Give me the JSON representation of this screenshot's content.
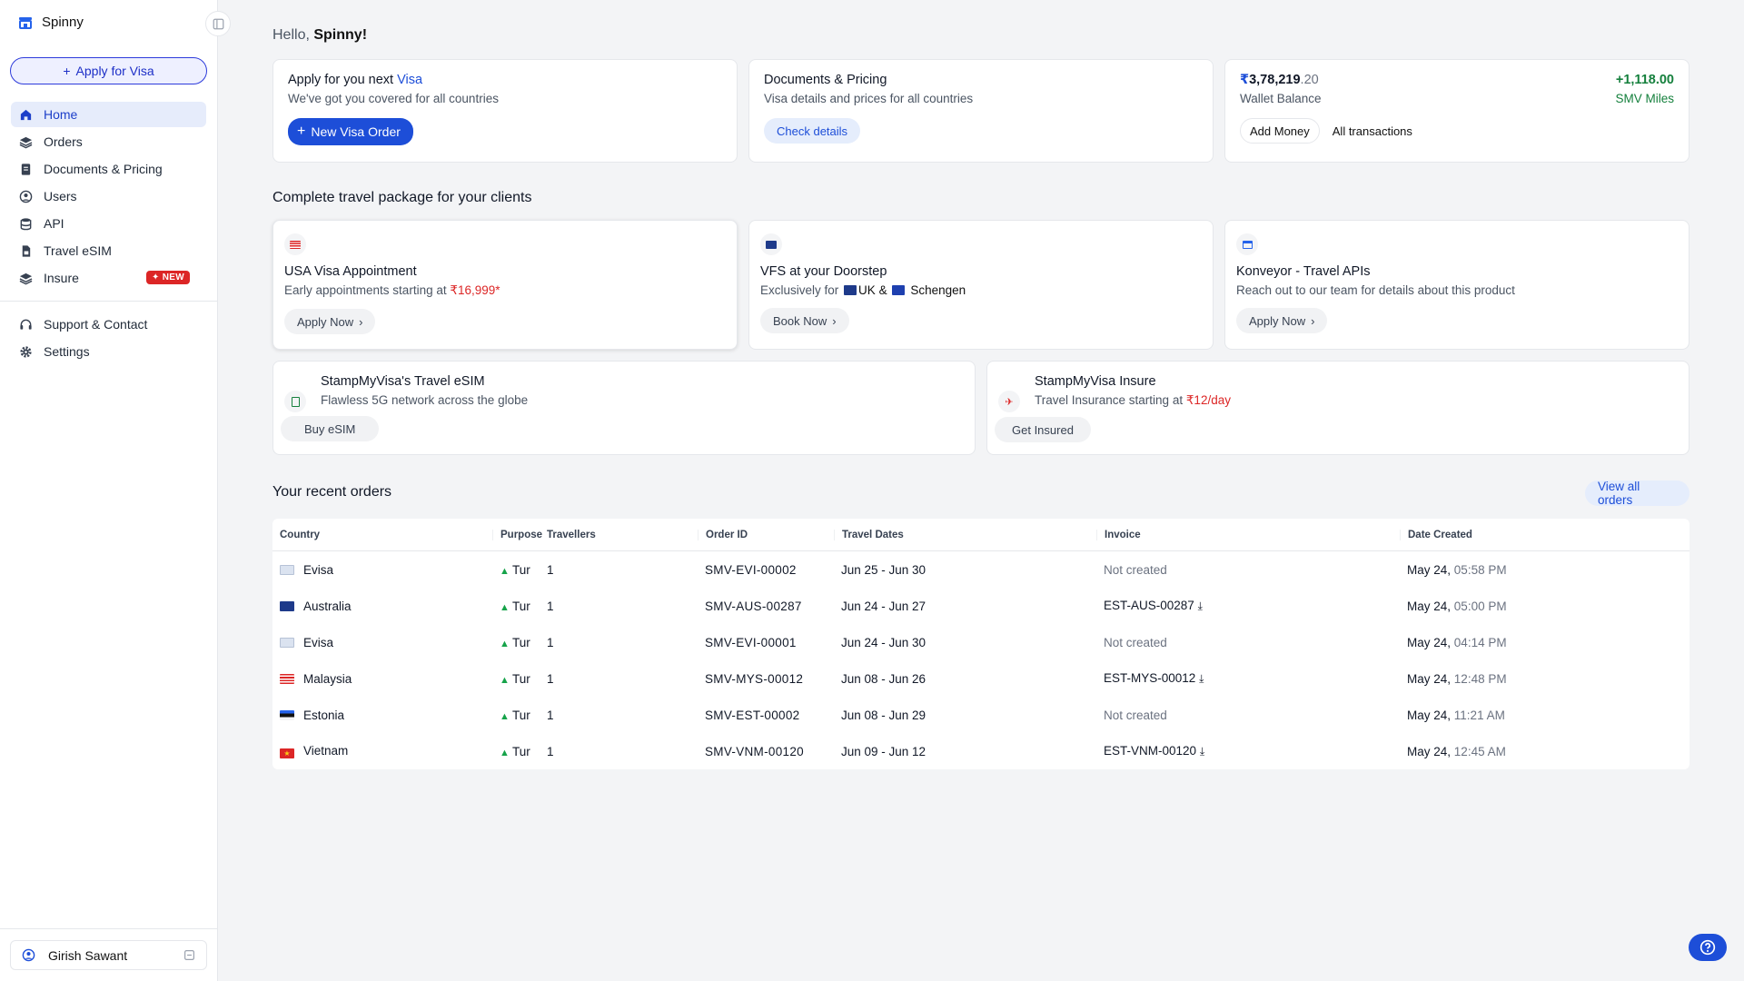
{
  "sidebar": {
    "brand": "Spinny",
    "apply_button": "Apply for Visa",
    "items": [
      {
        "label": "Home",
        "icon": "home-icon"
      },
      {
        "label": "Orders",
        "icon": "layers-icon"
      },
      {
        "label": "Documents & Pricing",
        "icon": "document-icon"
      },
      {
        "label": "Users",
        "icon": "user-circle-icon"
      },
      {
        "label": "API",
        "icon": "database-icon"
      },
      {
        "label": "Travel eSIM",
        "icon": "sim-icon"
      },
      {
        "label": "Insure",
        "icon": "layers-icon",
        "badge": "NEW"
      }
    ],
    "bottom_items": [
      {
        "label": "Support & Contact",
        "icon": "headset-icon"
      },
      {
        "label": "Settings",
        "icon": "gear-icon"
      }
    ],
    "user": "Girish Sawant"
  },
  "greeting": {
    "prefix": "Hello,",
    "name": "Spinny!"
  },
  "top_cards": {
    "visa": {
      "title_prefix": "Apply for you next",
      "title_highlight": "Visa",
      "subtitle": "We've got you covered for all countries",
      "button": "New Visa Order"
    },
    "docs": {
      "title": "Documents & Pricing",
      "subtitle": "Visa details and prices for all countries",
      "button": "Check details"
    },
    "wallet": {
      "currency": "₹",
      "amount_main": "3,78,219",
      "amount_decimal": ".20",
      "label": "Wallet Balance",
      "miles": "+1,118.00",
      "miles_label": "SMV Miles",
      "add_money": "Add Money",
      "transactions": "All transactions"
    }
  },
  "packages_title": "Complete travel package for your clients",
  "packages": {
    "usa": {
      "title": "USA Visa Appointment",
      "subtitle_prefix": "Early appointments starting at",
      "price": "₹16,999*",
      "button": "Apply Now"
    },
    "vfs": {
      "title": "VFS at your Doorstep",
      "subtitle_prefix": "Exclusively for",
      "uk": "UK",
      "amp": "&",
      "schengen": "Schengen",
      "button": "Book Now"
    },
    "konveyor": {
      "title": "Konveyor - Travel APIs",
      "subtitle": "Reach out to our team for details about this product",
      "button": "Apply Now"
    },
    "esim": {
      "title": "StampMyVisa's Travel eSIM",
      "subtitle": "Flawless 5G network across the globe",
      "button": "Buy eSIM"
    },
    "insure": {
      "title": "StampMyVisa Insure",
      "subtitle_prefix": "Travel Insurance starting at",
      "price": "₹12/day",
      "button": "Get Insured"
    }
  },
  "orders": {
    "title": "Your recent orders",
    "view_all": "View all orders",
    "columns": [
      "Country",
      "Purpose",
      "Travellers",
      "Order ID",
      "Travel Dates",
      "Invoice",
      "Date Created"
    ],
    "rows": [
      {
        "country": "Evisa",
        "purpose": "Tur",
        "travellers": "1",
        "order_id": "SMV-EVI-00002",
        "dates": "Jun 25 - Jun 30",
        "invoice": "Not created",
        "date": "May 24,",
        "time": "05:58 PM"
      },
      {
        "country": "Australia",
        "purpose": "Tur",
        "travellers": "1",
        "order_id": "SMV-AUS-00287",
        "dates": "Jun 24 - Jun 27",
        "invoice": "EST-AUS-00287",
        "date": "May 24,",
        "time": "05:00 PM"
      },
      {
        "country": "Evisa",
        "purpose": "Tur",
        "travellers": "1",
        "order_id": "SMV-EVI-00001",
        "dates": "Jun 24 - Jun 30",
        "invoice": "Not created",
        "date": "May 24,",
        "time": "04:14 PM"
      },
      {
        "country": "Malaysia",
        "purpose": "Tur",
        "travellers": "1",
        "order_id": "SMV-MYS-00012",
        "dates": "Jun 08 - Jun 26",
        "invoice": "EST-MYS-00012",
        "date": "May 24,",
        "time": "12:48 PM"
      },
      {
        "country": "Estonia",
        "purpose": "Tur",
        "travellers": "1",
        "order_id": "SMV-EST-00002",
        "dates": "Jun 08 - Jun 29",
        "invoice": "Not created",
        "date": "May 24,",
        "time": "11:21 AM"
      },
      {
        "country": "Vietnam",
        "purpose": "Tur",
        "travellers": "1",
        "order_id": "SMV-VNM-00120",
        "dates": "Jun 09 - Jun 12",
        "invoice": "EST-VNM-00120",
        "date": "May 24,",
        "time": "12:45 AM"
      }
    ]
  },
  "colors": {
    "accent": "#1d4ed8",
    "danger": "#dc2626",
    "success": "#15803d"
  }
}
